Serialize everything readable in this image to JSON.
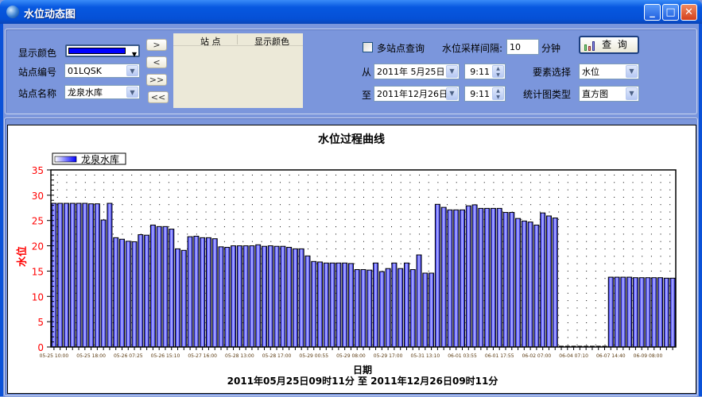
{
  "window": {
    "title": "水位动态图",
    "icon": "globe-icon",
    "controls": [
      "minimize-icon",
      "maximize-icon",
      "close-icon"
    ]
  },
  "form": {
    "color_label": "显示颜色",
    "color_value": "#0000ff",
    "station_code_label": "站点编号",
    "station_code": "01LQSK",
    "station_name_label": "站点名称",
    "station_name": "龙泉水库",
    "move_buttons": [
      ">",
      "<",
      ">>",
      "<<"
    ],
    "list_headers": [
      "站 点",
      "显示颜色"
    ],
    "multi_station_label": "多站点查询",
    "multi_station_checked": false,
    "interval_label": "水位采样间隔:",
    "interval_value": "10",
    "interval_unit": "分钟",
    "query_button": "查  询",
    "from_label": "从",
    "from_date": "2011年 5月25日",
    "from_time": "9:11",
    "to_label": "至",
    "to_date": "2011年12月26日",
    "to_time": "9:11",
    "element_label": "要素选择",
    "element_value": "水位",
    "chart_type_label": "统计图类型",
    "chart_type_value": "直方图"
  },
  "chart_data": {
    "type": "bar",
    "title": "水位过程曲线",
    "ylabel": "水位",
    "xlabel": "日期",
    "subtitle": "2011年05月25日09时11分 至 2011年12月26日09时11分",
    "legend": {
      "position": "top-left",
      "entries": [
        "龙泉水库"
      ]
    },
    "series": [
      {
        "name": "龙泉水库",
        "color": "#0000ff",
        "values": [
          28.4,
          28.4,
          28.4,
          28.4,
          28.4,
          28.4,
          28.3,
          28.3,
          25.1,
          28.4,
          21.6,
          21.3,
          20.9,
          20.8,
          22.2,
          22.1,
          24.1,
          23.8,
          23.8,
          23.3,
          19.4,
          19.1,
          21.8,
          21.9,
          21.6,
          21.6,
          21.4,
          19.8,
          19.7,
          20.0,
          20.0,
          20.0,
          20.0,
          20.2,
          19.9,
          20.0,
          19.9,
          19.9,
          19.7,
          19.4,
          19.4,
          18.0,
          16.9,
          16.8,
          16.6,
          16.6,
          16.6,
          16.6,
          16.5,
          15.3,
          15.3,
          15.2,
          16.6,
          14.9,
          15.5,
          16.6,
          15.5,
          16.6,
          15.3,
          18.2,
          14.6,
          14.6,
          28.2,
          27.6,
          27.1,
          27.1,
          27.1,
          27.9,
          28.1,
          27.4,
          27.4,
          27.4,
          27.4,
          26.6,
          26.6,
          25.4,
          24.9,
          24.7,
          24.1,
          26.5,
          25.9,
          25.5,
          null,
          null,
          null,
          null,
          null,
          null,
          null,
          null,
          13.8,
          13.8,
          13.8,
          13.8,
          13.7,
          13.7,
          13.7,
          13.7,
          13.7,
          13.6,
          13.6
        ]
      }
    ],
    "x_tick_labels": [
      "05-25 10:00",
      "05-25 18:00",
      "05-26 07:25",
      "05-26 15:10",
      "05-27 16:00",
      "05-28 13:00",
      "05-28 17:00",
      "05-29 00:55",
      "05-29 08:00",
      "05-29 17:00",
      "05-31 13:10",
      "06-01 03:55",
      "06-01 17:55",
      "06-02 07:00",
      "06-04 07:10",
      "06-07 14:40",
      "06-09 08:00"
    ],
    "ylim": [
      0,
      35
    ],
    "y_ticks": [
      0,
      5,
      10,
      15,
      20,
      25,
      30,
      35
    ],
    "grid": "dotted",
    "tick_color": "#ff0000"
  }
}
